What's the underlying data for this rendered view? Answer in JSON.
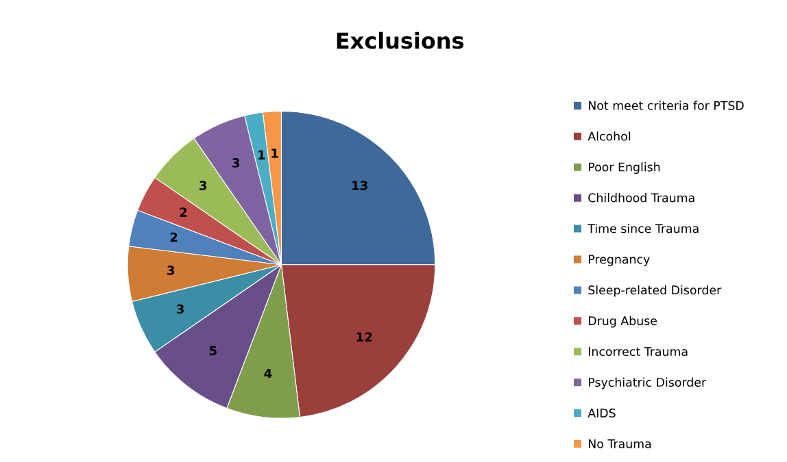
{
  "chart_data": {
    "type": "pie",
    "title": "Exclusions",
    "categories": [
      "Not meet criteria for PTSD",
      "Alcohol",
      "Poor English",
      "Childhood Trauma",
      "Time since Trauma",
      "Pregnancy",
      "Sleep-related Disorder",
      "Drug Abuse",
      "Incorrect Trauma",
      "Psychiatric Disorder",
      "AIDS",
      "No Trauma"
    ],
    "values": [
      13,
      12,
      4,
      5,
      3,
      3,
      2,
      2,
      3,
      3,
      1,
      1
    ],
    "colors": [
      "#3f699b",
      "#9b3f3d",
      "#7f9d4a",
      "#694f8a",
      "#3c8ea6",
      "#d07c35",
      "#4f81bd",
      "#c0504d",
      "#9bbb59",
      "#8064a2",
      "#4bacc6",
      "#f79646"
    ],
    "data_labels": true,
    "legend": "right"
  }
}
